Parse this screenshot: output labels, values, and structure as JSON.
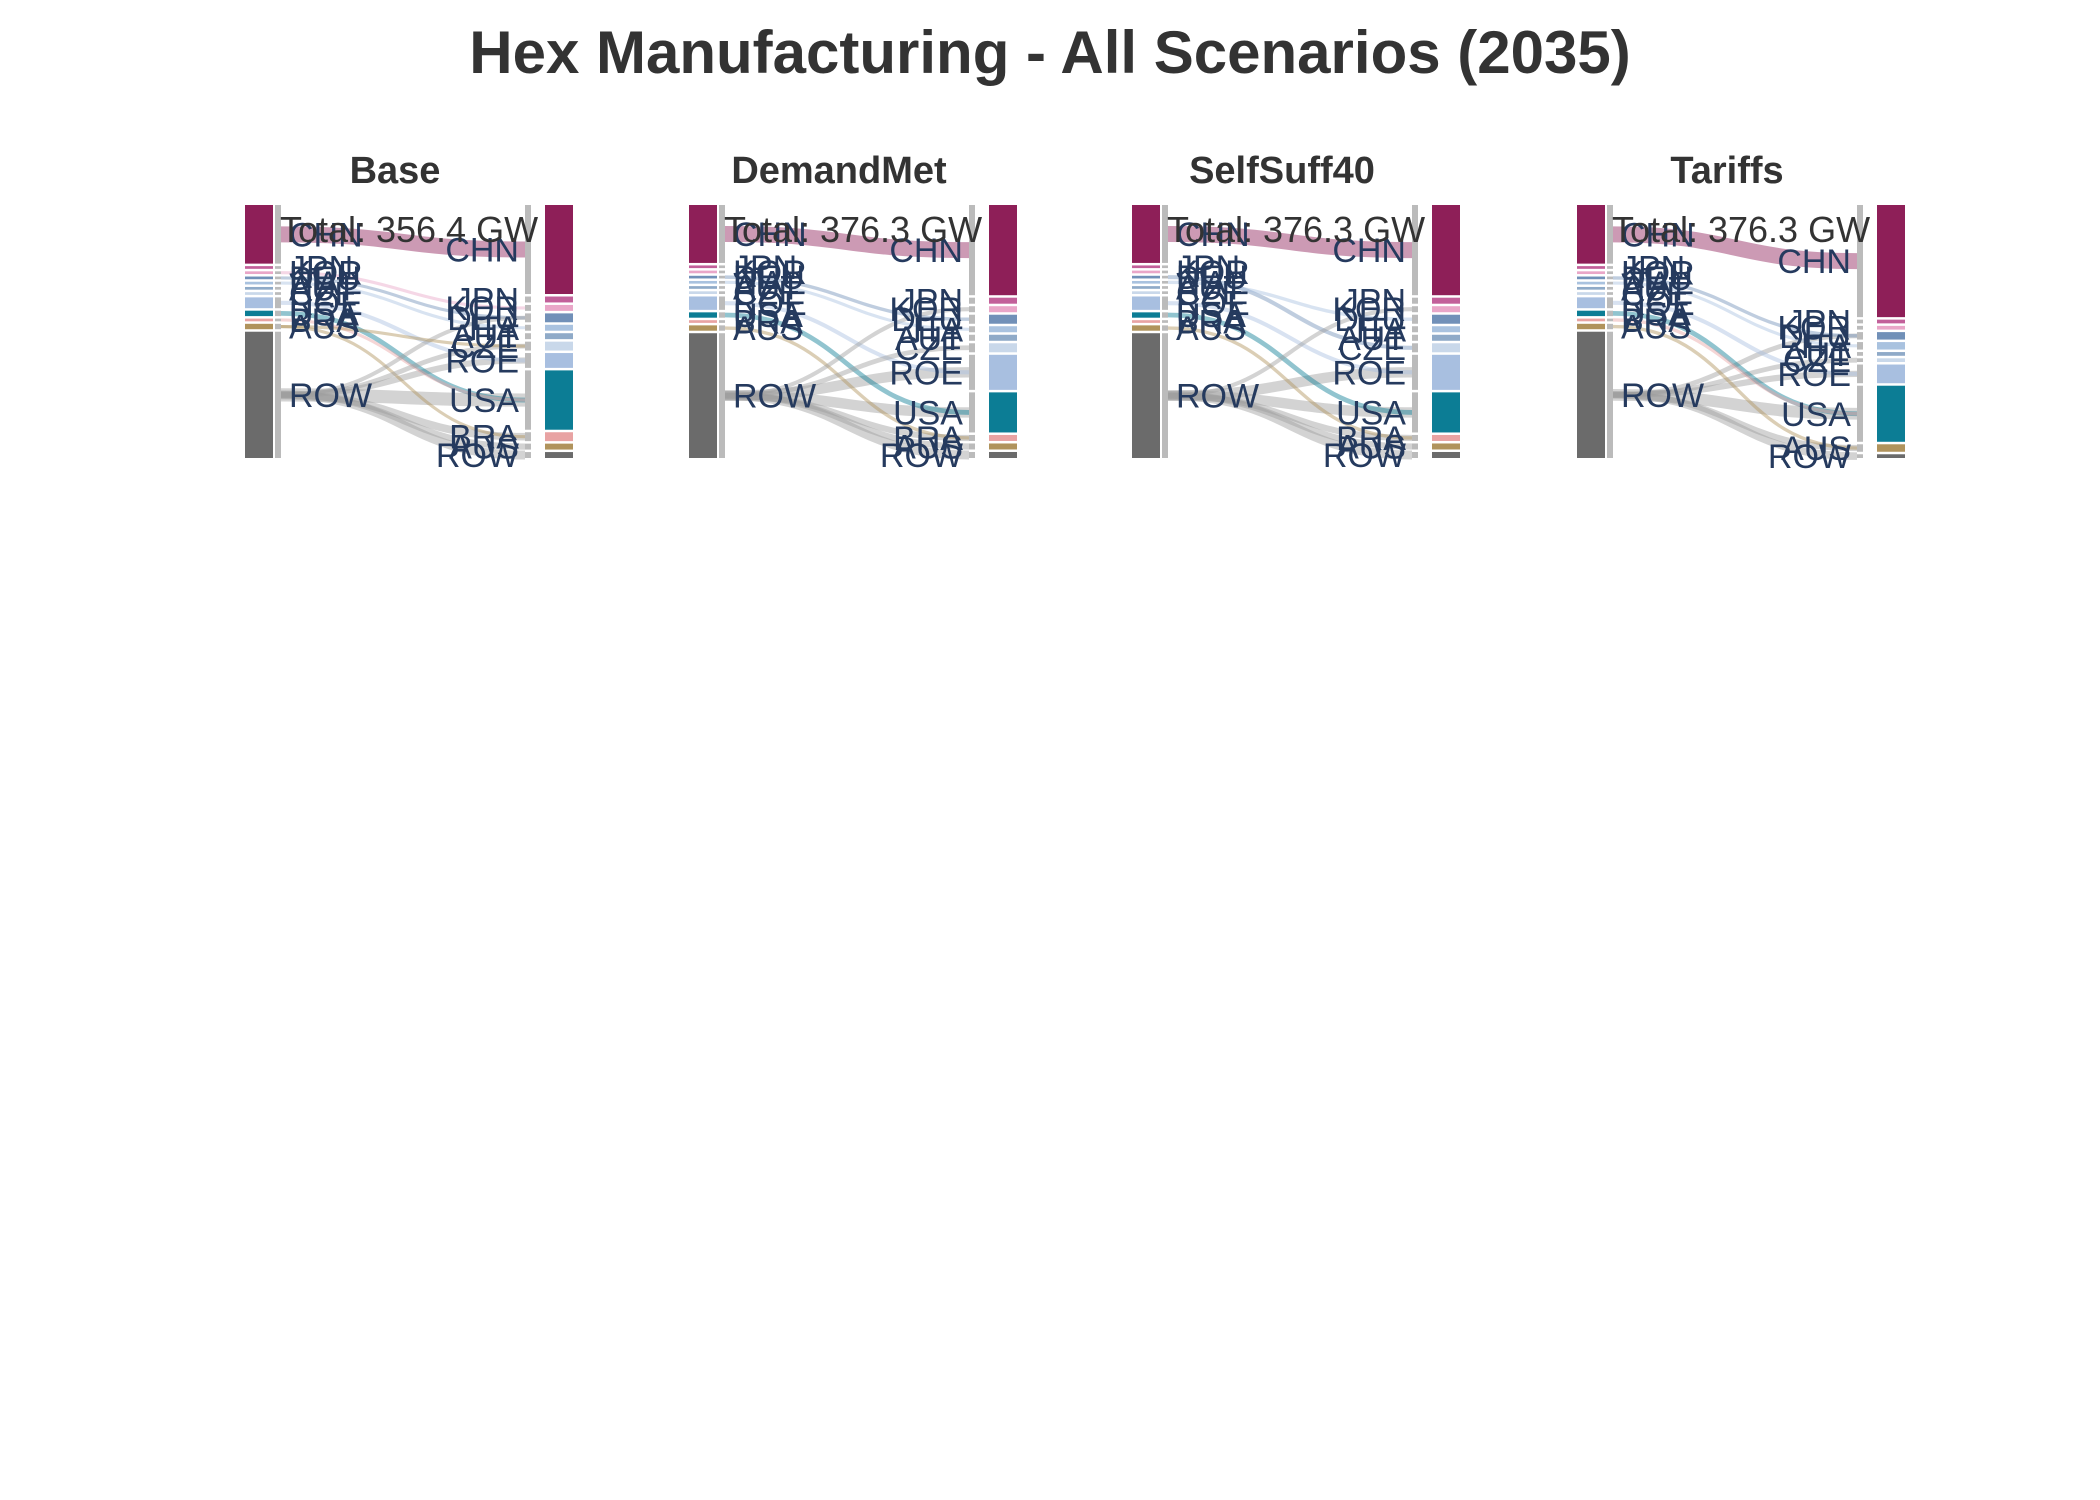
{
  "title": "Hex Manufacturing - All Scenarios (2035)",
  "colors": {
    "CHN": "#8e1f58",
    "JPN": "#c2609a",
    "KOR": "#e9a6c8",
    "DEU": "#7190b8",
    "ITA": "#a9c2df",
    "AUT": "#8faac8",
    "CZE": "#c9d8ea",
    "ROE": "#a8bfe0",
    "USA": "#0c7d95",
    "BRA": "#e8a3a3",
    "AUS": "#b0935c",
    "ROW": "#6b6b6b",
    "label": "#253a5e"
  },
  "chart_data": [
    {
      "type": "sankey",
      "title": "Base",
      "annotation": "Total: 356.4 GW",
      "left_nodes": [
        "CHN",
        "JPN",
        "KOR",
        "DEU",
        "ITA",
        "AUT",
        "CZE",
        "ROE",
        "USA",
        "BRA",
        "AUS",
        "ROW"
      ],
      "right_nodes": [
        "CHN",
        "JPN",
        "KOR",
        "DEU",
        "ITA",
        "AUT",
        "CZE",
        "ROE",
        "USA",
        "BRA",
        "AUS",
        "ROW"
      ],
      "left_values": [
        13,
        0.6,
        0.6,
        0.6,
        0.6,
        0.6,
        0.6,
        2.4,
        1.2,
        0.6,
        1.2,
        28
      ],
      "right_values": [
        18,
        1.2,
        1.2,
        1.8,
        1.2,
        1.2,
        1.8,
        3,
        12,
        1.8,
        1.2,
        1.2
      ],
      "links": [
        [
          "CHN",
          "CHN",
          10
        ],
        [
          "ROW",
          "USA",
          8
        ],
        [
          "ROW",
          "ROW",
          5
        ],
        [
          "ROW",
          "BRA",
          4
        ],
        [
          "ROW",
          "AUS",
          3
        ],
        [
          "ROW",
          "ROE",
          3
        ],
        [
          "KOR",
          "KOR",
          0.8
        ],
        [
          "DEU",
          "DEU",
          0.8
        ],
        [
          "ITA",
          "ITA",
          0.8
        ],
        [
          "USA",
          "USA",
          2
        ],
        [
          "AUS",
          "BRA",
          0.8
        ],
        [
          "BRA",
          "USA",
          0.8
        ],
        [
          "ROE",
          "ROE",
          1.5
        ],
        [
          "ROW",
          "CZE",
          2
        ],
        [
          "ROW",
          "DEU",
          1.5
        ],
        [
          "AUS",
          "CZE",
          0.8
        ]
      ]
    },
    {
      "type": "sankey",
      "title": "DemandMet",
      "annotation": "Total: 376.3 GW",
      "left_nodes": [
        "CHN",
        "JPN",
        "KOR",
        "DEU",
        "ITA",
        "AUT",
        "CZE",
        "ROE",
        "USA",
        "BRA",
        "AUS",
        "ROW"
      ],
      "right_nodes": [
        "CHN",
        "JPN",
        "KOR",
        "DEU",
        "ITA",
        "AUT",
        "CZE",
        "ROE",
        "USA",
        "BRA",
        "AUS",
        "ROW"
      ],
      "left_values": [
        13,
        0.6,
        0.6,
        0.6,
        0.6,
        0.6,
        0.6,
        3,
        1.2,
        0.6,
        1.2,
        28
      ],
      "right_values": [
        18,
        1.2,
        1.2,
        1.8,
        1.2,
        1.2,
        1.8,
        7,
        8,
        1.2,
        1.2,
        1.2
      ],
      "links": [
        [
          "CHN",
          "CHN",
          10
        ],
        [
          "ROW",
          "ROE",
          6
        ],
        [
          "ROW",
          "USA",
          6
        ],
        [
          "ROW",
          "ROW",
          5
        ],
        [
          "ROW",
          "AUS",
          3
        ],
        [
          "ROW",
          "BRA",
          3
        ],
        [
          "DEU",
          "DEU",
          1
        ],
        [
          "USA",
          "USA",
          2
        ],
        [
          "AUS",
          "BRA",
          1
        ],
        [
          "ROE",
          "ROE",
          1.5
        ],
        [
          "ROW",
          "CZE",
          2
        ],
        [
          "ROW",
          "KOR",
          1.5
        ],
        [
          "ITA",
          "ITA",
          0.8
        ]
      ]
    },
    {
      "type": "sankey",
      "title": "SelfSuff40",
      "annotation": "Total: 376.3 GW",
      "left_nodes": [
        "CHN",
        "JPN",
        "KOR",
        "DEU",
        "ITA",
        "AUT",
        "CZE",
        "ROE",
        "USA",
        "BRA",
        "AUS",
        "ROW"
      ],
      "right_nodes": [
        "CHN",
        "JPN",
        "KOR",
        "DEU",
        "ITA",
        "AUT",
        "CZE",
        "ROE",
        "USA",
        "BRA",
        "AUS",
        "ROW"
      ],
      "left_values": [
        13,
        0.6,
        0.6,
        0.6,
        0.6,
        0.6,
        0.6,
        3,
        1.2,
        0.6,
        1.2,
        28
      ],
      "right_values": [
        18,
        1.2,
        1.2,
        1.8,
        1.2,
        1.2,
        1.8,
        7,
        8,
        1.2,
        1.2,
        1.2
      ],
      "links": [
        [
          "CHN",
          "CHN",
          10
        ],
        [
          "ROW",
          "ROE",
          6
        ],
        [
          "ROW",
          "USA",
          6
        ],
        [
          "ROW",
          "ROW",
          5
        ],
        [
          "ROW",
          "AUS",
          3
        ],
        [
          "ROW",
          "BRA",
          3
        ],
        [
          "DEU",
          "CZE",
          1.5
        ],
        [
          "USA",
          "USA",
          2
        ],
        [
          "AUS",
          "BRA",
          1
        ],
        [
          "ROE",
          "ROE",
          1.5
        ],
        [
          "ROW",
          "KOR",
          1.5
        ],
        [
          "ITA",
          "DEU",
          1
        ]
      ]
    },
    {
      "type": "sankey",
      "title": "Tariffs",
      "annotation": "Total: 376.3 GW",
      "left_nodes": [
        "CHN",
        "JPN",
        "KOR",
        "DEU",
        "ITA",
        "AUT",
        "CZE",
        "ROE",
        "USA",
        "BRA",
        "AUS",
        "ROW"
      ],
      "right_nodes": [
        "CHN",
        "JPN",
        "KOR",
        "DEU",
        "ITA",
        "AUT",
        "CZE",
        "ROE",
        "USA",
        "AUS",
        "ROW"
      ],
      "left_values": [
        13,
        0.6,
        0.6,
        0.6,
        0.6,
        0.6,
        0.6,
        2.4,
        1.2,
        0.6,
        1.2,
        28
      ],
      "right_values": [
        18,
        0.6,
        0.6,
        1.2,
        1.2,
        0.6,
        0.6,
        3,
        9,
        1.2,
        0.6
      ],
      "links": [
        [
          "CHN",
          "CHN",
          10
        ],
        [
          "ROW",
          "USA",
          7
        ],
        [
          "ROW",
          "ROW",
          4
        ],
        [
          "ROW",
          "AUS",
          3
        ],
        [
          "ROW",
          "ROE",
          3
        ],
        [
          "ROW",
          "DEU",
          2
        ],
        [
          "ROW",
          "CZE",
          2
        ],
        [
          "DEU",
          "DEU",
          1
        ],
        [
          "USA",
          "USA",
          2
        ],
        [
          "AUS",
          "AUS",
          1
        ],
        [
          "BRA",
          "USA",
          1
        ],
        [
          "ROE",
          "ROE",
          1.5
        ],
        [
          "ITA",
          "ITA",
          0.8
        ]
      ]
    }
  ]
}
